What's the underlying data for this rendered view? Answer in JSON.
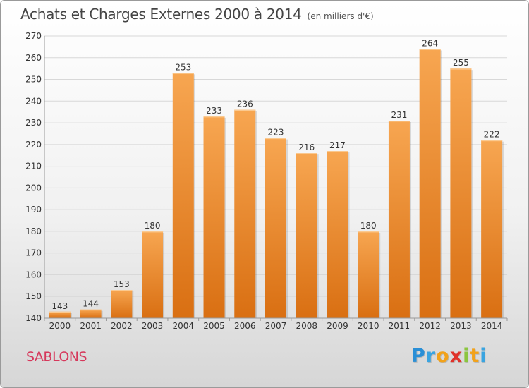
{
  "title": "Achats et Charges Externes 2000 à 2014",
  "subtitle": "(en milliers d'€)",
  "commune": "SABLONS",
  "logo": {
    "letters": [
      "P",
      "r",
      "o",
      "x",
      "i",
      "t",
      "i"
    ],
    "colors": [
      "#2a8fd6",
      "#3aa4e0",
      "#f2a21a",
      "#e0322a",
      "#8bc53f",
      "#f2a21a",
      "#3aa4e0"
    ]
  },
  "colors": {
    "bar_top": "#f7a651",
    "bar_bottom": "#d96f12",
    "grid": "#d8d8d8",
    "text": "#333333"
  },
  "chart_data": {
    "type": "bar",
    "title": "Achats et Charges Externes 2000 à 2014",
    "subtitle": "(en milliers d'€)",
    "categories": [
      "2000",
      "2001",
      "2002",
      "2003",
      "2004",
      "2005",
      "2006",
      "2007",
      "2008",
      "2009",
      "2010",
      "2011",
      "2012",
      "2013",
      "2014"
    ],
    "values": [
      143,
      144,
      153,
      180,
      253,
      233,
      236,
      223,
      216,
      217,
      180,
      231,
      264,
      255,
      222
    ],
    "ylim": [
      140,
      270
    ],
    "yticks": [
      140,
      150,
      160,
      170,
      180,
      190,
      200,
      210,
      220,
      230,
      240,
      250,
      260,
      270
    ],
    "grid": true,
    "data_labels": true
  }
}
